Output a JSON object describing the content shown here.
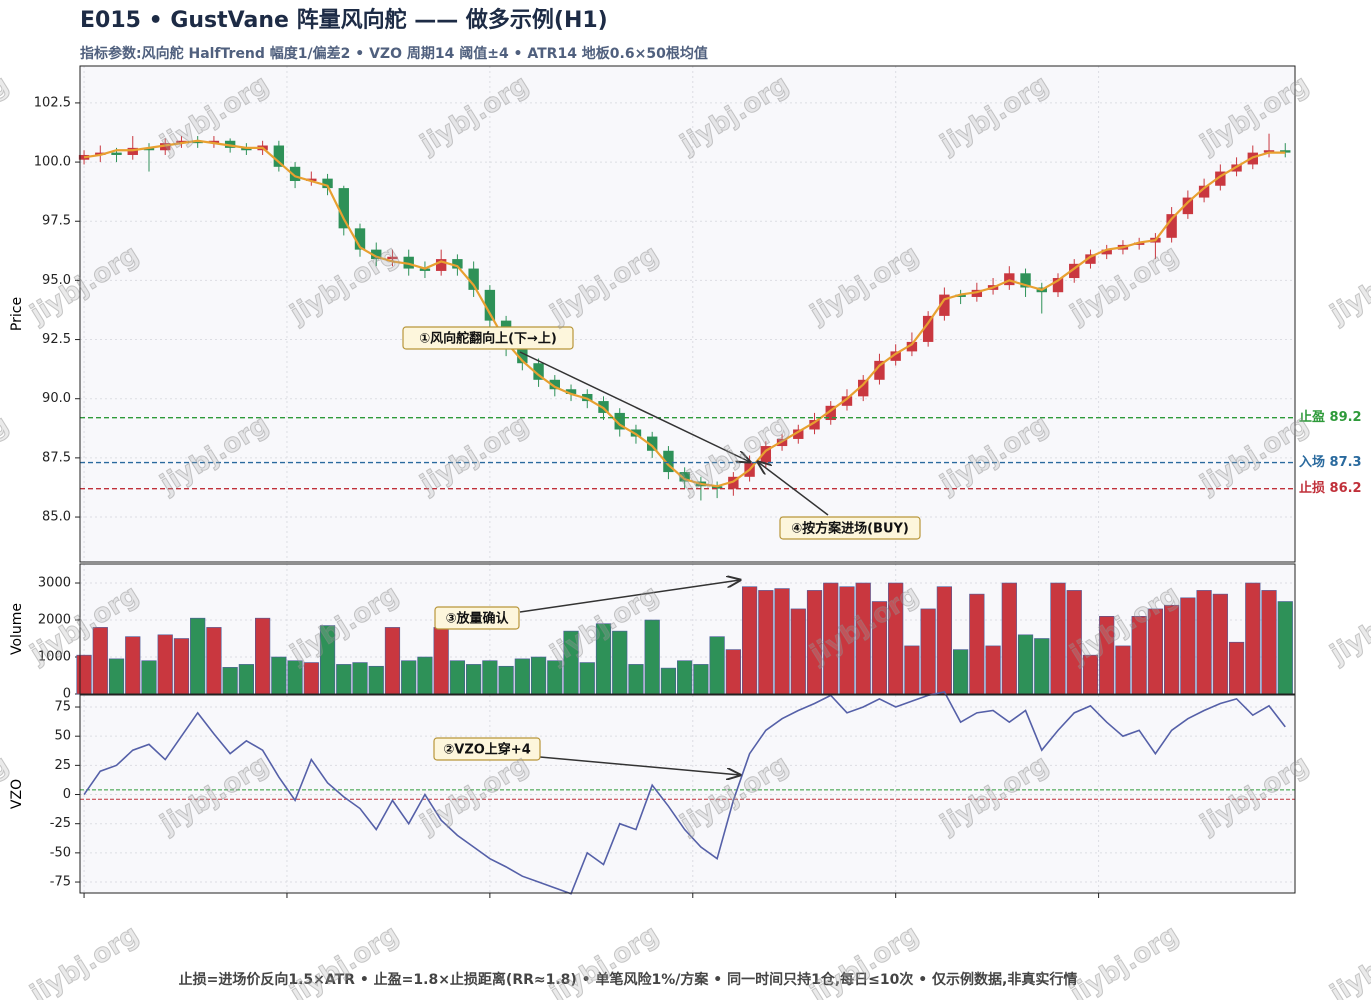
{
  "title": "E015 • GustVane 阵量风向舵 —— 做多示例(H1)",
  "subtitle": "指标参数:风向舵 HalfTrend 幅度1/偏差2 • VZO 周期14 阈值±4 • ATR14 地板0.6×50根均值",
  "footer": "止损=进场价反向1.5×ATR • 止盈=1.8×止损距离(RR≈1.8) • 单笔风险1%/方案 • 同一时间只持1仓,每日≤10次 • 仅示例数据,非真实行情",
  "watermark": "jiybj.org",
  "chart_data": [
    {
      "type": "candlestick",
      "ylabel": "Price",
      "xlim": [
        -0.25,
        74.6
      ],
      "xticks": [
        0,
        12.5,
        25,
        37.5,
        50,
        62.5
      ],
      "ylim": [
        83.1,
        104.06
      ],
      "yticks": [
        {
          "value": 85,
          "label": "85.0"
        },
        87.5,
        {
          "value": 90,
          "label": "90.0"
        },
        92.5,
        {
          "value": 95,
          "label": "95.0"
        },
        97.5,
        {
          "value": 100,
          "label": "100.0"
        },
        102.5
      ],
      "up_color": "#c9373f",
      "down_color": "#2e9158",
      "grid": true,
      "open": [
        100.1,
        100.3,
        100.4,
        100.3,
        100.6,
        100.5,
        100.8,
        100.9,
        100.8,
        100.9,
        100.6,
        100.5,
        100.7,
        99.8,
        99.2,
        99.3,
        98.9,
        97.2,
        96.3,
        95.9,
        96.0,
        95.5,
        95.4,
        95.9,
        95.5,
        94.6,
        93.3,
        92.1,
        91.5,
        90.8,
        90.4,
        90.2,
        89.9,
        89.4,
        88.7,
        88.4,
        87.8,
        86.9,
        86.5,
        86.3,
        86.2,
        86.7,
        87.3,
        88.0,
        88.3,
        88.7,
        89.1,
        89.7,
        90.1,
        90.8,
        91.6,
        92.0,
        92.4,
        93.5,
        94.4,
        94.3,
        94.6,
        94.8,
        95.3,
        94.7,
        94.5,
        95.1,
        95.7,
        96.1,
        96.3,
        96.5,
        96.6,
        96.8,
        97.8,
        98.5,
        99.0,
        99.6,
        99.9,
        100.4,
        100.5
      ],
      "high": [
        100.5,
        100.7,
        100.6,
        101.1,
        100.8,
        101.0,
        101.1,
        101.1,
        101.1,
        101.0,
        100.8,
        100.9,
        100.9,
        100.0,
        99.6,
        99.5,
        99.0,
        97.4,
        96.6,
        96.3,
        96.3,
        95.8,
        96.3,
        96.1,
        95.8,
        94.8,
        93.5,
        92.4,
        91.7,
        91.0,
        90.6,
        90.4,
        90.1,
        89.6,
        88.9,
        88.6,
        88.0,
        87.1,
        86.7,
        86.5,
        86.9,
        87.6,
        88.2,
        88.5,
        88.9,
        89.4,
        89.9,
        90.4,
        91.0,
        91.9,
        92.3,
        92.8,
        93.7,
        94.7,
        94.6,
        94.9,
        95.1,
        95.6,
        95.5,
        94.9,
        95.3,
        95.9,
        96.3,
        96.5,
        96.7,
        96.8,
        97.0,
        98.1,
        98.8,
        99.3,
        99.9,
        100.2,
        100.7,
        101.2,
        100.8
      ],
      "low": [
        99.9,
        100.0,
        100.0,
        100.1,
        99.6,
        100.3,
        100.6,
        100.6,
        100.6,
        100.4,
        100.3,
        100.3,
        99.6,
        98.9,
        99.0,
        98.6,
        96.9,
        96.0,
        95.6,
        95.6,
        95.2,
        95.1,
        95.2,
        95.2,
        94.3,
        93.0,
        91.8,
        91.2,
        90.5,
        90.1,
        89.9,
        89.6,
        89.1,
        88.4,
        88.1,
        87.5,
        86.6,
        86.2,
        85.7,
        85.8,
        85.9,
        86.5,
        87.1,
        87.8,
        88.1,
        88.5,
        88.9,
        89.5,
        89.9,
        90.6,
        91.4,
        91.8,
        92.2,
        93.3,
        94.0,
        94.1,
        94.4,
        94.6,
        94.3,
        93.6,
        94.3,
        94.9,
        95.5,
        95.9,
        96.1,
        96.3,
        95.9,
        96.6,
        97.6,
        98.3,
        98.8,
        99.4,
        99.7,
        100.2,
        100.2
      ],
      "close": [
        100.3,
        100.4,
        100.3,
        100.6,
        100.5,
        100.8,
        100.9,
        100.8,
        100.9,
        100.6,
        100.5,
        100.7,
        99.8,
        99.2,
        99.3,
        98.9,
        97.2,
        96.3,
        95.9,
        96.0,
        95.5,
        95.4,
        95.9,
        95.5,
        94.6,
        93.3,
        92.1,
        91.5,
        90.8,
        90.4,
        90.2,
        89.9,
        89.4,
        88.7,
        88.4,
        87.8,
        86.9,
        86.5,
        86.3,
        86.2,
        86.7,
        87.3,
        88.0,
        88.3,
        88.7,
        89.1,
        89.7,
        90.1,
        90.8,
        91.6,
        92.0,
        92.4,
        93.5,
        94.4,
        94.3,
        94.6,
        94.8,
        95.3,
        94.7,
        94.5,
        95.1,
        95.7,
        96.1,
        96.3,
        96.5,
        96.6,
        96.8,
        97.8,
        98.5,
        99.0,
        99.6,
        99.9,
        100.4,
        100.5,
        100.4
      ],
      "halftrend": {
        "color": "#e8a030",
        "values": [
          100.2,
          100.3,
          100.5,
          100.5,
          100.6,
          100.7,
          100.8,
          100.9,
          100.8,
          100.7,
          100.6,
          100.6,
          100.0,
          99.4,
          99.2,
          99.0,
          97.6,
          96.4,
          96.0,
          95.8,
          95.7,
          95.5,
          95.8,
          95.6,
          94.8,
          93.6,
          92.4,
          91.6,
          91.0,
          90.5,
          90.2,
          90.0,
          89.6,
          88.9,
          88.5,
          88.0,
          87.2,
          86.6,
          86.4,
          86.3,
          86.5,
          87.0,
          87.8,
          88.2,
          88.6,
          89.0,
          89.5,
          90.0,
          90.6,
          91.4,
          91.9,
          92.3,
          93.2,
          94.2,
          94.4,
          94.5,
          94.7,
          95.0,
          94.8,
          94.6,
          95.0,
          95.5,
          96.0,
          96.3,
          96.4,
          96.6,
          96.7,
          97.6,
          98.3,
          98.9,
          99.4,
          99.8,
          100.2,
          100.4,
          100.4
        ]
      },
      "levels": [
        {
          "label": "止盈 89.2",
          "value": 89.2,
          "color": "#2e9a3a"
        },
        {
          "label": "入场 87.3",
          "value": 87.3,
          "color": "#2a6a9e"
        },
        {
          "label": "止损 86.2",
          "value": 86.2,
          "color": "#c0303a"
        }
      ],
      "annotations": [
        "①风向舵翻向上(下→上)",
        "④按方案进场(BUY)"
      ]
    },
    {
      "type": "bar",
      "ylabel": "Volume",
      "ylim": [
        0,
        3514
      ],
      "yticks": [
        0,
        1000,
        2000,
        3000
      ],
      "grid": true,
      "values": [
        1050,
        1800,
        950,
        1550,
        900,
        1600,
        1500,
        2050,
        1800,
        720,
        800,
        2050,
        1000,
        900,
        850,
        1850,
        800,
        850,
        750,
        1800,
        900,
        1000,
        1800,
        900,
        800,
        900,
        750,
        950,
        1000,
        900,
        1700,
        850,
        1900,
        1700,
        800,
        2000,
        700,
        900,
        800,
        1550,
        1200,
        2900,
        2800,
        2850,
        2300,
        2800,
        3000,
        2900,
        3000,
        2500,
        3000,
        1300,
        2300,
        2900,
        1200,
        2700,
        1300,
        3000,
        1600,
        1500,
        3000,
        2800,
        1050,
        2100,
        1300,
        2100,
        2300,
        2400,
        2600,
        2800,
        2700,
        1400,
        3000,
        2800,
        2500
      ],
      "annotations": [
        "③放量确认"
      ]
    },
    {
      "type": "line",
      "ylabel": "VZO",
      "ylim": [
        -84.4,
        85.3
      ],
      "yticks": [
        -75,
        -50,
        -25,
        0,
        25,
        50,
        75
      ],
      "grid": true,
      "color": "#5560a8",
      "values": [
        0,
        20,
        25,
        38,
        43,
        30,
        50,
        70,
        52,
        35,
        46,
        38,
        15,
        -5,
        30,
        10,
        -2,
        -12,
        -30,
        -5,
        -25,
        0,
        -22,
        -35,
        -45,
        -55,
        -62,
        -70,
        -75,
        -80,
        -85,
        -50,
        -60,
        -25,
        -30,
        8,
        -10,
        -30,
        -45,
        -55,
        -5,
        35,
        55,
        65,
        72,
        78,
        85,
        70,
        75,
        82,
        75,
        80,
        85,
        88,
        62,
        70,
        72,
        62,
        72,
        38,
        55,
        70,
        76,
        62,
        50,
        55,
        35,
        55,
        65,
        72,
        78,
        82,
        68,
        76,
        58
      ],
      "levels": [
        {
          "value": 4,
          "color": "#2e9a3a"
        },
        {
          "value": -4,
          "color": "#c0303a"
        }
      ],
      "annotations": [
        "②VZO上穿+4"
      ]
    }
  ]
}
